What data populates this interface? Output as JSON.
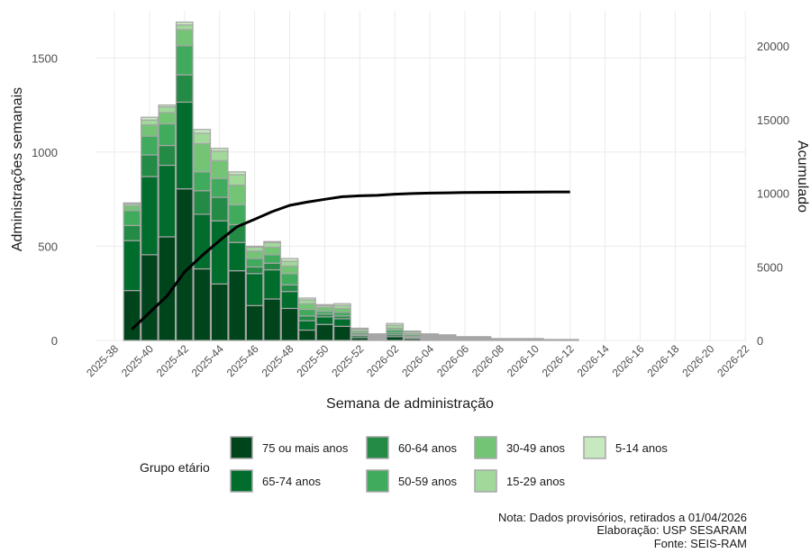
{
  "chart_data": {
    "type": "bar",
    "stacked": true,
    "title": "",
    "xlabel": "Semana de administração",
    "ylabel": "Administrações semanais",
    "y2label": "Acumulado",
    "ylim": [
      0,
      1750
    ],
    "y2lim": [
      0,
      22400
    ],
    "yticks": [
      0,
      500,
      1000,
      1500
    ],
    "y2ticks": [
      0,
      5000,
      10000,
      15000,
      20000
    ],
    "grid": true,
    "categories": [
      "2025-38",
      "2025-39",
      "2025-40",
      "2025-41",
      "2025-42",
      "2025-43",
      "2025-44",
      "2025-45",
      "2025-46",
      "2025-47",
      "2025-48",
      "2025-49",
      "2025-50",
      "2025-51",
      "2025-52",
      "2026-01",
      "2026-02",
      "2026-03",
      "2026-04",
      "2026-05",
      "2026-06",
      "2026-07",
      "2026-08",
      "2026-09",
      "2026-10",
      "2026-11",
      "2026-12",
      "2026-13",
      "2026-14",
      "2026-15",
      "2026-16",
      "2026-17",
      "2026-18",
      "2026-19",
      "2026-20",
      "2026-21",
      "2026-22"
    ],
    "x_tick_labels": [
      "2025-38",
      "2025-40",
      "2025-42",
      "2025-44",
      "2025-46",
      "2025-48",
      "2025-50",
      "2025-52",
      "2026-02",
      "2026-04",
      "2026-06",
      "2026-08",
      "2026-10",
      "2026-12",
      "2026-14",
      "2026-16",
      "2026-18",
      "2026-20",
      "2026-22"
    ],
    "legend_title": "Grupo etário",
    "legend_position": "bottom",
    "series": [
      {
        "name": "75 ou mais anos",
        "color": "#00441b",
        "values": [
          0,
          265,
          455,
          550,
          805,
          380,
          300,
          370,
          185,
          220,
          170,
          55,
          85,
          75,
          15,
          5,
          20,
          10,
          5,
          5,
          5,
          0,
          0,
          0,
          0,
          0,
          0,
          0,
          0,
          0,
          0,
          0,
          0,
          0,
          0,
          0,
          0
        ]
      },
      {
        "name": "65-74 anos",
        "color": "#006d2c",
        "values": [
          0,
          265,
          415,
          380,
          460,
          290,
          335,
          150,
          170,
          155,
          90,
          50,
          40,
          40,
          10,
          5,
          10,
          5,
          5,
          5,
          0,
          5,
          0,
          0,
          0,
          0,
          0,
          0,
          0,
          0,
          0,
          0,
          0,
          0,
          0,
          0,
          0
        ]
      },
      {
        "name": "60-64 anos",
        "color": "#238b45",
        "values": [
          0,
          80,
          115,
          105,
          145,
          125,
          125,
          95,
          35,
          35,
          35,
          25,
          15,
          15,
          5,
          5,
          10,
          5,
          5,
          0,
          0,
          0,
          0,
          0,
          0,
          0,
          0,
          0,
          0,
          0,
          0,
          0,
          0,
          0,
          0,
          0,
          0
        ]
      },
      {
        "name": "50-59 anos",
        "color": "#41ab5d",
        "values": [
          0,
          80,
          100,
          115,
          155,
          100,
          100,
          105,
          45,
          45,
          60,
          35,
          15,
          20,
          10,
          5,
          15,
          10,
          5,
          5,
          5,
          0,
          5,
          0,
          0,
          0,
          0,
          0,
          0,
          0,
          0,
          0,
          0,
          0,
          0,
          0,
          0
        ]
      },
      {
        "name": "30-49 anos",
        "color": "#74c476",
        "values": [
          0,
          25,
          60,
          60,
          85,
          150,
          95,
          105,
          40,
          40,
          40,
          30,
          20,
          20,
          10,
          5,
          10,
          5,
          5,
          5,
          0,
          5,
          0,
          0,
          5,
          0,
          0,
          0,
          0,
          0,
          0,
          0,
          0,
          0,
          0,
          0,
          0
        ]
      },
      {
        "name": "15-29 anos",
        "color": "#a1d99b",
        "values": [
          0,
          10,
          25,
          30,
          25,
          55,
          50,
          55,
          20,
          25,
          25,
          20,
          10,
          15,
          10,
          5,
          15,
          10,
          5,
          5,
          5,
          5,
          5,
          5,
          0,
          5,
          0,
          0,
          0,
          0,
          0,
          0,
          0,
          0,
          0,
          0,
          0
        ]
      },
      {
        "name": "5-14 anos",
        "color": "#c7e9c0",
        "values": [
          0,
          5,
          15,
          10,
          15,
          20,
          15,
          15,
          5,
          5,
          15,
          10,
          5,
          10,
          5,
          5,
          10,
          5,
          5,
          5,
          5,
          5,
          0,
          5,
          5,
          0,
          5,
          0,
          0,
          0,
          0,
          0,
          0,
          0,
          0,
          0,
          0
        ]
      }
    ],
    "cumulative_line": {
      "name": "Acumulado",
      "color": "#000000",
      "values": [
        null,
        750,
        1890,
        3020,
        4650,
        5770,
        6790,
        7730,
        8230,
        8750,
        9180,
        9400,
        9590,
        9770,
        9830,
        9860,
        9940,
        9980,
        10010,
        10030,
        10050,
        10060,
        10070,
        10075,
        10085,
        10090,
        10095
      ]
    }
  },
  "notes": {
    "line1": "Nota: Dados provisórios, retirados a 01/04/2026",
    "line2": "Elaboração: USP SESARAM",
    "line3": "Fonte: SEIS-RAM"
  }
}
